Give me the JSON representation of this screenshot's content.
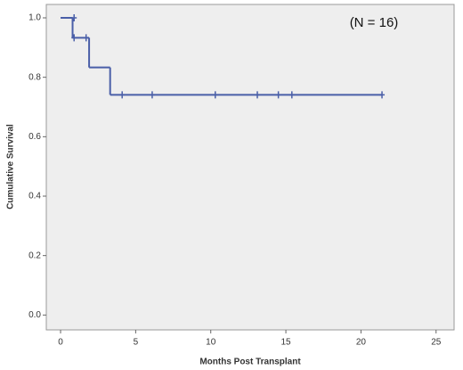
{
  "chart_data": {
    "type": "step",
    "annotation": "(N = 16)",
    "x_label": "Months Post Transplant",
    "y_label": "Cumulative Survival",
    "xlim": [
      -0.95,
      26.2
    ],
    "xticks": [
      0,
      5,
      10,
      15,
      20,
      25
    ],
    "ylim": [
      -0.05,
      1.045
    ],
    "yticks": [
      {
        "value": 0,
        "label": "0.0"
      },
      {
        "value": 0.2,
        "label": "0.2"
      },
      {
        "value": 0.4,
        "label": "0.4"
      },
      {
        "value": 0.6,
        "label": "0.6"
      },
      {
        "value": 0.8,
        "label": "0.8"
      },
      {
        "value": 1.0,
        "label": "1.0"
      }
    ],
    "series": [
      {
        "color": "#4a5fa8",
        "x": [
          0,
          0.8,
          1.9,
          3.3
        ],
        "values": [
          1.0,
          0.933,
          0.833,
          0.741
        ]
      }
    ],
    "censored": {
      "color": "#4a5fa8",
      "x": [
        0.9,
        0.9,
        1.7,
        4.1,
        6.1,
        10.3,
        13.1,
        14.5,
        15.4,
        21.4
      ],
      "values": [
        1.0,
        0.933,
        0.933,
        0.741,
        0.741,
        0.741,
        0.741,
        0.741,
        0.741,
        0.741
      ]
    }
  }
}
